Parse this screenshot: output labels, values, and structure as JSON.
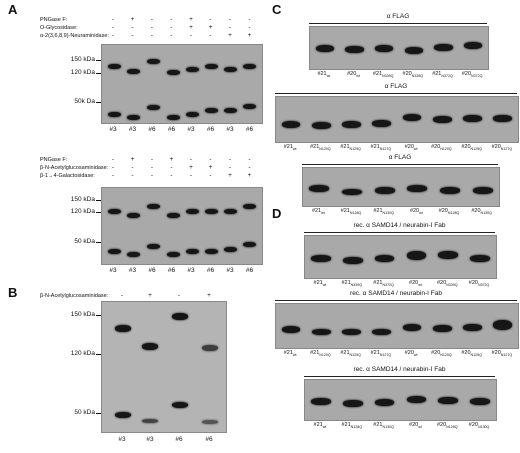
{
  "panels": {
    "A": "A",
    "B": "B",
    "C": "C",
    "D": "D"
  },
  "A_top": {
    "rows": [
      "PNGase F:",
      "O-Glycosidase:",
      "α-2(3,6,8,9)-Neuraminidase:"
    ],
    "signs": [
      [
        "-",
        "+",
        "-",
        "-",
        "+",
        "-",
        "-",
        "-"
      ],
      [
        "-",
        "-",
        "-",
        "-",
        "+",
        "+",
        "-",
        "-"
      ],
      [
        "-",
        "-",
        "-",
        "-",
        "-",
        "-",
        "+",
        "+"
      ]
    ],
    "markers": [
      "150 kDa",
      "120 kDa",
      "50k Da"
    ],
    "lanes": [
      "#3",
      "#3",
      "#6",
      "#6",
      "#3",
      "#6",
      "#3",
      "#6"
    ]
  },
  "A_bottom": {
    "rows": [
      "PNGase F:",
      "β-N-Acetylglucosaminidase:",
      "β-1→4-Galactosidase:"
    ],
    "signs": [
      [
        "-",
        "+",
        "-",
        "+",
        "-",
        "-",
        "-",
        "-"
      ],
      [
        "-",
        "-",
        "-",
        "-",
        "+",
        "+",
        "-",
        "-"
      ],
      [
        "-",
        "-",
        "-",
        "-",
        "-",
        "-",
        "+",
        "+"
      ]
    ],
    "markers": [
      "150 kDa",
      "120 kDa",
      "50 kDa"
    ],
    "lanes": [
      "#3",
      "#3",
      "#6",
      "#6",
      "#3",
      "#6",
      "#3",
      "#6"
    ]
  },
  "B": {
    "row": "β-N-Acetylglucosaminidase:",
    "signs": [
      "-",
      "+",
      "-",
      "+"
    ],
    "markers": [
      "150 kDa",
      "120 kDa",
      "50 kDa"
    ],
    "lanes": [
      "#3",
      "#3",
      "#6",
      "#6"
    ]
  },
  "C": {
    "blots": [
      {
        "title": "α FLAG",
        "lanes": [
          [
            "#21",
            "wt"
          ],
          [
            "#20",
            "wt"
          ],
          [
            "#21",
            "N339Q"
          ],
          [
            "#20",
            "N339Q"
          ],
          [
            "#21",
            "N372Q"
          ],
          [
            "#20",
            "N372Q"
          ]
        ]
      },
      {
        "title": "α FLAG",
        "lanes": [
          [
            "#21",
            "wt"
          ],
          [
            "#21",
            "N120Q"
          ],
          [
            "#21",
            "N125Q"
          ],
          [
            "#21",
            "N127Q"
          ],
          [
            "#20",
            "wt"
          ],
          [
            "#20",
            "N120Q"
          ],
          [
            "#20",
            "N125Q"
          ],
          [
            "#20",
            "N127Q"
          ]
        ]
      },
      {
        "title": "α FLAG",
        "lanes": [
          [
            "#21",
            "wt"
          ],
          [
            "#21",
            "N128Q"
          ],
          [
            "#21",
            "N130Q"
          ],
          [
            "#20",
            "wt"
          ],
          [
            "#20",
            "N128Q"
          ],
          [
            "#20",
            "N130Q"
          ]
        ]
      }
    ]
  },
  "D": {
    "blots": [
      {
        "title": "rec. α SAMD14 / neurabin-I Fab",
        "lanes": [
          [
            "#21",
            "wt"
          ],
          [
            "#21",
            "N339Q"
          ],
          [
            "#21",
            "N372Q"
          ],
          [
            "#20",
            "wt"
          ],
          [
            "#20",
            "N339Q"
          ],
          [
            "#20",
            "N372Q"
          ]
        ]
      },
      {
        "title": "rec. α SAMD14 / neurabin-I Fab",
        "lanes": [
          [
            "#21",
            "wt"
          ],
          [
            "#21",
            "N120Q"
          ],
          [
            "#21",
            "N125Q"
          ],
          [
            "#21",
            "N127Q"
          ],
          [
            "#20",
            "wt"
          ],
          [
            "#20",
            "N120Q"
          ],
          [
            "#20",
            "N125Q"
          ],
          [
            "#20",
            "N127Q"
          ]
        ]
      },
      {
        "title": "rec. α SAMD14 / neurabin-I Fab",
        "lanes": [
          [
            "#21",
            "wt"
          ],
          [
            "#21",
            "N128Q"
          ],
          [
            "#21",
            "N130Q"
          ],
          [
            "#20",
            "wt"
          ],
          [
            "#20",
            "N128Q"
          ],
          [
            "#20",
            "N130Q"
          ]
        ]
      }
    ]
  }
}
